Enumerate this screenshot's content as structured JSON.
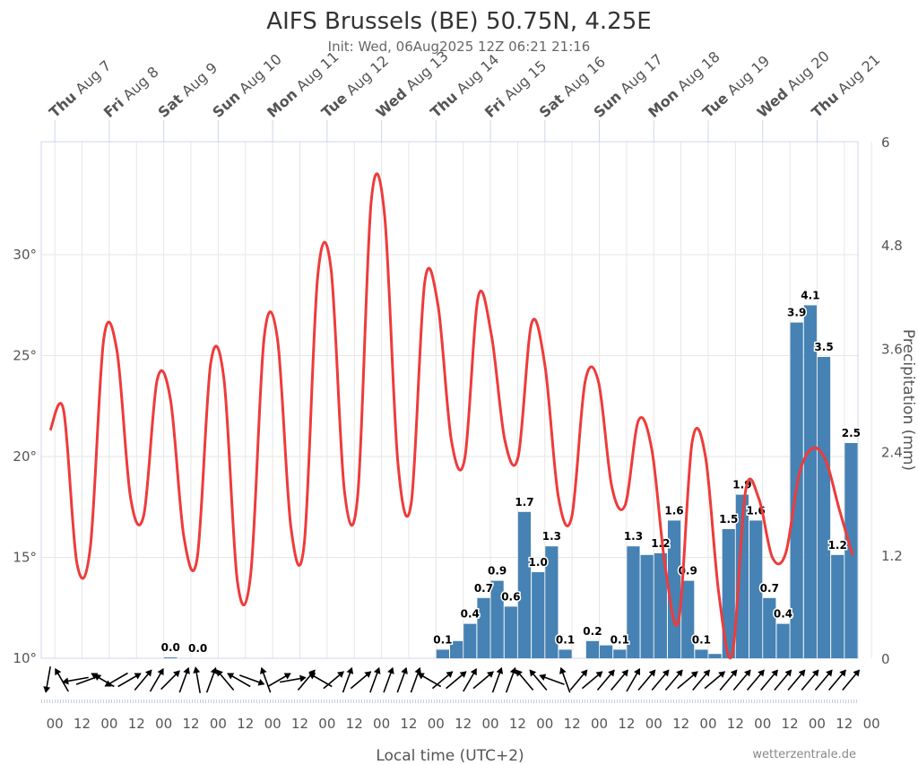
{
  "header": {
    "title": "AIFS Brussels (BE) 50.75N, 4.25E",
    "subtitle": "Init: Wed, 06Aug2025 12Z 06:21 21:16"
  },
  "credit": "wetterzentrale.de",
  "chart_data": {
    "type": "bar+line",
    "title": "AIFS Brussels (BE) 50.75N, 4.25E",
    "subtitle": "Init: Wed, 06Aug2025 12Z 06:21 21:16",
    "xlabel": "Local time (UTC+2)",
    "y_left": {
      "ticks": [
        "10°",
        "15°",
        "20°",
        "25°",
        "30°"
      ],
      "values": [
        10,
        15,
        20,
        25,
        30
      ],
      "range": [
        10,
        35.6
      ]
    },
    "y_right": {
      "label": "Precipitation (mm)",
      "ticks": [
        "0",
        "1.2",
        "2.4",
        "3.6",
        "4.8",
        "6"
      ],
      "values": [
        0,
        1.2,
        2.4,
        3.6,
        4.8,
        6
      ],
      "range": [
        0,
        6
      ]
    },
    "x_bottom_ticks": [
      "00",
      "12",
      "00",
      "12",
      "00",
      "12",
      "00",
      "12",
      "00",
      "12",
      "00",
      "12",
      "00",
      "12",
      "00",
      "12",
      "00",
      "12",
      "00",
      "12",
      "00",
      "12",
      "00",
      "12",
      "00",
      "12",
      "00",
      "12",
      "00",
      "12",
      "00"
    ],
    "top_days": [
      {
        "dow": "Thu",
        "date": "Aug 7"
      },
      {
        "dow": "Fri",
        "date": "Aug 8"
      },
      {
        "dow": "Sat",
        "date": "Aug 9"
      },
      {
        "dow": "Sun",
        "date": "Aug 10"
      },
      {
        "dow": "Mon",
        "date": "Aug 11"
      },
      {
        "dow": "Tue",
        "date": "Aug 12"
      },
      {
        "dow": "Wed",
        "date": "Aug 13"
      },
      {
        "dow": "Thu",
        "date": "Aug 14"
      },
      {
        "dow": "Fri",
        "date": "Aug 15"
      },
      {
        "dow": "Sat",
        "date": "Aug 16"
      },
      {
        "dow": "Sun",
        "date": "Aug 17"
      },
      {
        "dow": "Mon",
        "date": "Aug 18"
      },
      {
        "dow": "Tue",
        "date": "Aug 19"
      },
      {
        "dow": "Wed",
        "date": "Aug 20"
      },
      {
        "dow": "Thu",
        "date": "Aug 21"
      }
    ],
    "series": [
      {
        "name": "Temperature",
        "type": "line",
        "color": "#ee3b3b",
        "values": [
          21.3,
          22.3,
          14.7,
          15.5,
          25.8,
          25.2,
          18.0,
          17.1,
          23.8,
          22.8,
          16.0,
          15.0,
          24.6,
          23.8,
          13.8,
          14.2,
          25.9,
          25.8,
          16.5,
          15.7,
          28.9,
          29.3,
          18.3,
          18.1,
          32.6,
          32.0,
          19.7,
          17.7,
          28.6,
          27.5,
          20.8,
          19.9,
          27.9,
          26.0,
          20.8,
          20.0,
          26.6,
          24.5,
          18.0,
          17.0,
          23.7,
          23.7,
          18.5,
          17.6,
          21.8,
          20.3,
          14.5,
          11.9,
          20.7,
          20.0,
          13.2,
          10.2,
          18.3,
          17.9,
          15.0,
          15.2,
          19.1,
          20.4,
          19.8,
          17.4,
          15.1
        ]
      },
      {
        "name": "Precipitation",
        "type": "bar",
        "color": "#4682b4",
        "values": [
          0,
          0,
          0,
          0,
          0,
          0,
          0,
          0,
          0,
          0.01,
          0,
          0,
          0,
          0,
          0,
          0,
          0,
          0,
          0,
          0,
          0,
          0,
          0,
          0,
          0,
          0,
          0,
          0,
          0,
          0.1,
          0.2,
          0.4,
          0.7,
          0.9,
          0.6,
          1.7,
          1.0,
          1.3,
          0.1,
          0,
          0.2,
          0.15,
          0.1,
          1.3,
          1.2,
          1.22,
          1.6,
          0.9,
          0.1,
          0.05,
          1.5,
          1.9,
          1.6,
          0.7,
          0.4,
          3.9,
          4.1,
          3.5,
          1.2,
          2.5
        ],
        "labels": [
          "",
          "",
          "",
          "",
          "",
          "",
          "",
          "",
          "",
          "0.0",
          "",
          "0.0",
          "",
          "",
          "",
          "",
          "",
          "",
          "",
          "",
          "",
          "",
          "",
          "",
          "",
          "",
          "",
          "",
          "",
          "0.1",
          "",
          "0.4",
          "0.7",
          "0.9",
          "0.6",
          "1.7",
          "1.0",
          "1.3",
          "0.1",
          "",
          "0.2",
          "",
          "0.1",
          "1.3",
          "",
          "1.2",
          "1.6",
          "0.9",
          "0.1",
          "",
          "1.5",
          "1.9",
          "1.6",
          "0.7",
          "0.4",
          "3.9",
          "4.1",
          "3.5",
          "1.2",
          "2.5"
        ]
      }
    ],
    "wind_arrow_angles": [
      190,
      330,
      260,
      70,
      300,
      240,
      60,
      40,
      30,
      45,
      20,
      350,
      20,
      320,
      300,
      110,
      340,
      60,
      80,
      40,
      300,
      50,
      20,
      50,
      20,
      20,
      20,
      20,
      300,
      50,
      50,
      30,
      50,
      20,
      20,
      320,
      320,
      290,
      340,
      40,
      50,
      40,
      40,
      30,
      40,
      40,
      40,
      50,
      40,
      50,
      40,
      40,
      40,
      40,
      40,
      40,
      40,
      40,
      40,
      40
    ],
    "grid": true,
    "legend": "none"
  }
}
